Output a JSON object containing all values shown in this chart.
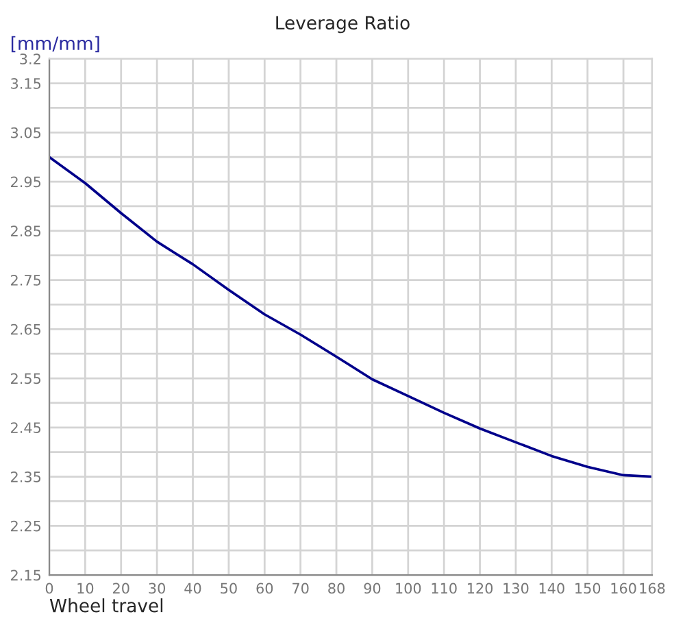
{
  "chart_data": {
    "type": "line",
    "title": "Leverage Ratio",
    "xlabel": "Wheel travel",
    "ylabel": "[mm/mm]",
    "x": [
      0,
      10,
      20,
      30,
      40,
      50,
      60,
      70,
      80,
      90,
      100,
      110,
      120,
      130,
      140,
      150,
      160,
      168
    ],
    "series": [
      {
        "color": "#00008b",
        "values": [
          3.0,
          2.947,
          2.886,
          2.828,
          2.782,
          2.73,
          2.68,
          2.639,
          2.594,
          2.548,
          2.514,
          2.48,
          2.448,
          2.42,
          2.392,
          2.37,
          2.353,
          2.35
        ]
      }
    ],
    "xlim": [
      0,
      168
    ],
    "xticks": [
      0,
      10,
      20,
      30,
      40,
      50,
      60,
      70,
      80,
      90,
      100,
      110,
      120,
      130,
      140,
      150,
      160,
      168
    ],
    "ylim": [
      2.15,
      3.2
    ],
    "yticks": [
      2.15,
      {
        "value": 2.2,
        "label": null
      },
      2.25,
      {
        "value": 2.3,
        "label": null
      },
      2.35,
      {
        "value": 2.4,
        "label": null
      },
      2.45,
      {
        "value": 2.5,
        "label": null
      },
      2.55,
      {
        "value": 2.6,
        "label": null
      },
      2.65,
      {
        "value": 2.7,
        "label": null
      },
      2.75,
      {
        "value": 2.8,
        "label": null
      },
      2.85,
      {
        "value": 2.9,
        "label": null
      },
      2.95,
      {
        "value": 3.0,
        "label": null
      },
      3.05,
      {
        "value": 3.1,
        "label": null
      },
      3.15,
      3.2
    ],
    "grid": true,
    "legend": false,
    "marker": "none",
    "line_style": "solid"
  }
}
